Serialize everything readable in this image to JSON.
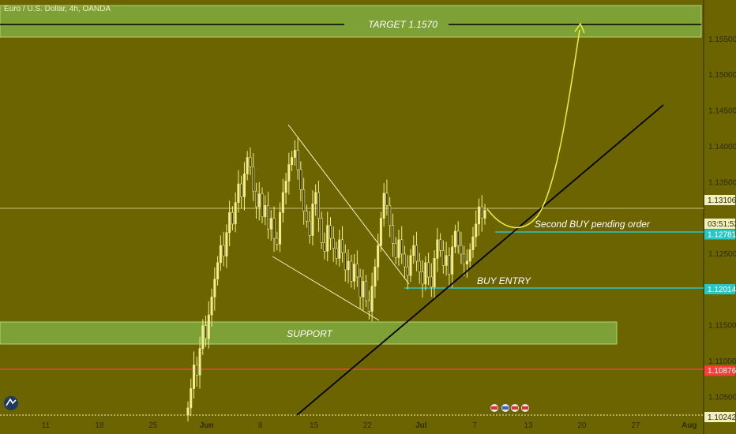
{
  "header": {
    "symbol_title": "Euro / U.S. Dollar, 4h, OANDA"
  },
  "colors": {
    "background": "#6b6400",
    "candle": "#f3ee8a",
    "zone_green": "#7fa53a",
    "cyan_level": "#29c6c6",
    "red_level": "#ff3b3b",
    "trendline": "#000000",
    "projection": "#f1ee3a",
    "axis_panel": "#6b6400"
  },
  "chart_data": {
    "type": "candlestick",
    "title": "Euro / U.S. Dollar, 4h, OANDA",
    "x_ticks": [
      "11",
      "18",
      "25",
      "Jun",
      "8",
      "15",
      "22",
      "Jul",
      "7",
      "13",
      "20",
      "27",
      "Aug"
    ],
    "y_ticks": [
      "1.15500",
      "1.15000",
      "1.14500",
      "1.14000",
      "1.13500",
      "1.12500",
      "1.11500",
      "1.11000",
      "1.10500"
    ],
    "ylim": [
      1.1025,
      1.1605
    ],
    "price_labels": [
      {
        "name": "current",
        "value": "1.13106"
      },
      {
        "name": "countdown",
        "value": "03:51:52"
      },
      {
        "name": "second_buy",
        "value": "1.12781"
      },
      {
        "name": "buy_entry",
        "value": "1.12014"
      },
      {
        "name": "red_level",
        "value": "1.10876"
      },
      {
        "name": "bottom_cut",
        "value": "1.10242"
      }
    ],
    "annotations": {
      "target": "TARGET 1.1570",
      "second_buy": "Second BUY pending order",
      "buy_entry": "BUY ENTRY",
      "support": "SUPPORT"
    },
    "levels": {
      "target_zone": [
        1.1548,
        1.159
      ],
      "target_line": 1.157,
      "second_buy": 1.12781,
      "buy_entry": 1.12014,
      "red_level": 1.10876,
      "support_zone": [
        1.1126,
        1.1158
      ],
      "current": 1.13106
    },
    "closes": [
      1.1035,
      1.1062,
      1.1095,
      1.1081,
      1.1118,
      1.115,
      1.1132,
      1.1165,
      1.119,
      1.1215,
      1.1238,
      1.1262,
      1.1247,
      1.128,
      1.1308,
      1.1292,
      1.1322,
      1.1348,
      1.133,
      1.1362,
      1.1385,
      1.1372,
      1.1338,
      1.1316,
      1.1334,
      1.1302,
      1.1318,
      1.1285,
      1.13,
      1.1272,
      1.1264,
      1.1308,
      1.1336,
      1.1352,
      1.1375,
      1.1385,
      1.1395,
      1.1368,
      1.134,
      1.131,
      1.1296,
      1.1276,
      1.132,
      1.1336,
      1.13,
      1.1266,
      1.1254,
      1.129,
      1.1272,
      1.1258,
      1.1244,
      1.127,
      1.1252,
      1.1228,
      1.124,
      1.1212,
      1.1236,
      1.1218,
      1.119,
      1.1212,
      1.1185,
      1.117,
      1.1205,
      1.1232,
      1.1262,
      1.13,
      1.1335,
      1.1318,
      1.129,
      1.1265,
      1.1245,
      1.127,
      1.125,
      1.1232,
      1.122,
      1.1248,
      1.1262,
      1.124,
      1.1225,
      1.1208,
      1.1238,
      1.1218,
      1.1204,
      1.1244,
      1.127,
      1.1255,
      1.1234,
      1.1248,
      1.1222,
      1.126,
      1.1282,
      1.1262,
      1.125,
      1.1236,
      1.124,
      1.1256,
      1.1274,
      1.1292,
      1.1316,
      1.13,
      1.1311
    ]
  }
}
